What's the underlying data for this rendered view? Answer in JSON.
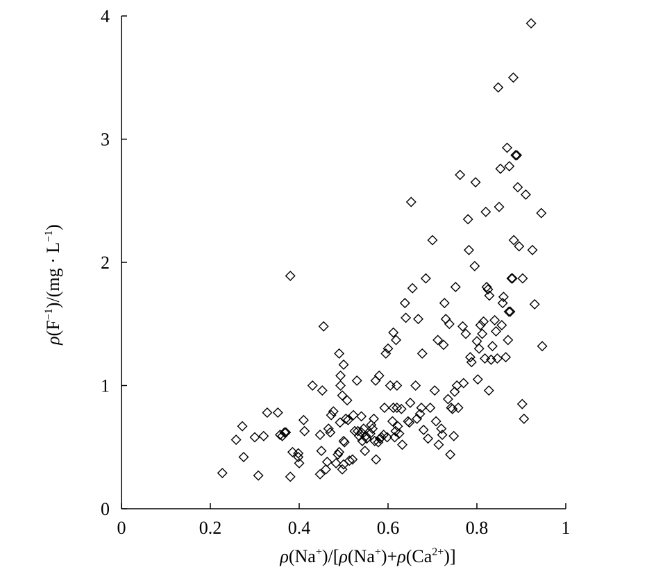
{
  "chart_data": {
    "type": "scatter",
    "marker": "diamond-open",
    "marker_color": "#000000",
    "grid": false,
    "legend": false,
    "xlim": [
      0,
      1
    ],
    "ylim": [
      0,
      4
    ],
    "xticks": [
      "0",
      "0.2",
      "0.4",
      "0.6",
      "0.8",
      "1"
    ],
    "yticks": [
      "0",
      "1",
      "2",
      "3",
      "4"
    ],
    "xlabel": {
      "p1": "ρ",
      "p2": "(Na",
      "p3": "+",
      "p4": ")/[",
      "p5": "ρ",
      "p6": "(Na",
      "p7": "+",
      "p8": ")+",
      "p9": "ρ",
      "p10": "(Ca",
      "p11": "2+",
      "p12": ")]"
    },
    "ylabel": {
      "p1": "ρ",
      "p2": "(F",
      "p3": "−1",
      "p4": ")/(mg · L",
      "p5": "−1",
      "p6": ")"
    },
    "points": [
      [
        0.227,
        0.29
      ],
      [
        0.258,
        0.56
      ],
      [
        0.272,
        0.67
      ],
      [
        0.275,
        0.42
      ],
      [
        0.3,
        0.58
      ],
      [
        0.308,
        0.27
      ],
      [
        0.32,
        0.59
      ],
      [
        0.328,
        0.78
      ],
      [
        0.352,
        0.78
      ],
      [
        0.357,
        0.6
      ],
      [
        0.362,
        0.59
      ],
      [
        0.367,
        0.62
      ],
      [
        0.37,
        0.62
      ],
      [
        0.38,
        0.26
      ],
      [
        0.38,
        1.89
      ],
      [
        0.385,
        0.46
      ],
      [
        0.398,
        0.45
      ],
      [
        0.398,
        0.42
      ],
      [
        0.4,
        0.37
      ],
      [
        0.41,
        0.72
      ],
      [
        0.412,
        0.63
      ],
      [
        0.43,
        1.0
      ],
      [
        0.447,
        0.6
      ],
      [
        0.447,
        0.28
      ],
      [
        0.45,
        0.47
      ],
      [
        0.452,
        0.96
      ],
      [
        0.455,
        1.48
      ],
      [
        0.46,
        0.32
      ],
      [
        0.463,
        0.38
      ],
      [
        0.466,
        0.65
      ],
      [
        0.47,
        0.62
      ],
      [
        0.472,
        0.76
      ],
      [
        0.477,
        0.79
      ],
      [
        0.483,
        0.37
      ],
      [
        0.487,
        0.44
      ],
      [
        0.49,
        1.26
      ],
      [
        0.49,
        0.46
      ],
      [
        0.492,
        0.7
      ],
      [
        0.493,
        1.0
      ],
      [
        0.493,
        1.08
      ],
      [
        0.497,
        0.92
      ],
      [
        0.497,
        0.32
      ],
      [
        0.5,
        0.36
      ],
      [
        0.5,
        1.17
      ],
      [
        0.5,
        0.55
      ],
      [
        0.502,
        0.54
      ],
      [
        0.505,
        0.73
      ],
      [
        0.508,
        0.88
      ],
      [
        0.51,
        0.72
      ],
      [
        0.513,
        0.39
      ],
      [
        0.52,
        0.4
      ],
      [
        0.522,
        0.76
      ],
      [
        0.525,
        0.63
      ],
      [
        0.53,
        1.04
      ],
      [
        0.532,
        0.63
      ],
      [
        0.535,
        0.59
      ],
      [
        0.54,
        0.75
      ],
      [
        0.54,
        0.62
      ],
      [
        0.542,
        0.55
      ],
      [
        0.545,
        0.65
      ],
      [
        0.548,
        0.47
      ],
      [
        0.55,
        0.59
      ],
      [
        0.552,
        0.57
      ],
      [
        0.56,
        0.61
      ],
      [
        0.562,
        0.68
      ],
      [
        0.565,
        0.65
      ],
      [
        0.568,
        0.73
      ],
      [
        0.57,
        0.55
      ],
      [
        0.572,
        1.04
      ],
      [
        0.573,
        0.4
      ],
      [
        0.578,
        0.54
      ],
      [
        0.58,
        1.08
      ],
      [
        0.582,
        0.57
      ],
      [
        0.585,
        0.58
      ],
      [
        0.59,
        0.6
      ],
      [
        0.592,
        0.82
      ],
      [
        0.595,
        1.26
      ],
      [
        0.598,
        0.58
      ],
      [
        0.6,
        1.3
      ],
      [
        0.605,
        1.0
      ],
      [
        0.61,
        0.71
      ],
      [
        0.612,
        1.43
      ],
      [
        0.612,
        0.82
      ],
      [
        0.615,
        0.58
      ],
      [
        0.617,
        0.63
      ],
      [
        0.618,
        1.37
      ],
      [
        0.62,
        1.0
      ],
      [
        0.62,
        0.82
      ],
      [
        0.622,
        0.67
      ],
      [
        0.625,
        0.61
      ],
      [
        0.63,
        0.81
      ],
      [
        0.632,
        0.52
      ],
      [
        0.638,
        1.67
      ],
      [
        0.64,
        1.55
      ],
      [
        0.645,
        0.71
      ],
      [
        0.648,
        0.7
      ],
      [
        0.65,
        0.86
      ],
      [
        0.652,
        2.49
      ],
      [
        0.655,
        1.79
      ],
      [
        0.662,
        1.0
      ],
      [
        0.665,
        0.73
      ],
      [
        0.668,
        1.54
      ],
      [
        0.672,
        0.77
      ],
      [
        0.675,
        0.82
      ],
      [
        0.677,
        1.26
      ],
      [
        0.68,
        0.64
      ],
      [
        0.685,
        1.87
      ],
      [
        0.69,
        0.57
      ],
      [
        0.695,
        0.82
      ],
      [
        0.7,
        2.18
      ],
      [
        0.705,
        0.96
      ],
      [
        0.708,
        0.71
      ],
      [
        0.712,
        1.37
      ],
      [
        0.714,
        0.52
      ],
      [
        0.72,
        0.65
      ],
      [
        0.722,
        0.6
      ],
      [
        0.725,
        1.33
      ],
      [
        0.727,
        1.67
      ],
      [
        0.73,
        1.54
      ],
      [
        0.735,
        0.89
      ],
      [
        0.738,
        1.5
      ],
      [
        0.74,
        0.44
      ],
      [
        0.742,
        0.82
      ],
      [
        0.745,
        0.81
      ],
      [
        0.748,
        0.59
      ],
      [
        0.75,
        0.95
      ],
      [
        0.752,
        1.8
      ],
      [
        0.755,
        1.0
      ],
      [
        0.758,
        0.82
      ],
      [
        0.762,
        2.71
      ],
      [
        0.768,
        1.48
      ],
      [
        0.77,
        1.02
      ],
      [
        0.775,
        1.42
      ],
      [
        0.78,
        2.35
      ],
      [
        0.782,
        2.1
      ],
      [
        0.785,
        1.23
      ],
      [
        0.788,
        1.19
      ],
      [
        0.795,
        1.97
      ],
      [
        0.797,
        2.65
      ],
      [
        0.8,
        1.36
      ],
      [
        0.802,
        1.05
      ],
      [
        0.805,
        1.3
      ],
      [
        0.808,
        1.49
      ],
      [
        0.812,
        1.42
      ],
      [
        0.815,
        1.52
      ],
      [
        0.818,
        1.22
      ],
      [
        0.82,
        2.41
      ],
      [
        0.822,
        1.8
      ],
      [
        0.825,
        1.78
      ],
      [
        0.827,
        0.96
      ],
      [
        0.828,
        1.73
      ],
      [
        0.832,
        1.21
      ],
      [
        0.835,
        1.32
      ],
      [
        0.84,
        1.53
      ],
      [
        0.843,
        1.44
      ],
      [
        0.846,
        1.22
      ],
      [
        0.848,
        3.42
      ],
      [
        0.85,
        2.45
      ],
      [
        0.853,
        2.76
      ],
      [
        0.856,
        1.49
      ],
      [
        0.858,
        1.67
      ],
      [
        0.86,
        1.72
      ],
      [
        0.865,
        1.23
      ],
      [
        0.868,
        2.93
      ],
      [
        0.87,
        1.37
      ],
      [
        0.872,
        1.6
      ],
      [
        0.873,
        2.78
      ],
      [
        0.875,
        1.6
      ],
      [
        0.878,
        1.87
      ],
      [
        0.88,
        1.87
      ],
      [
        0.882,
        3.5
      ],
      [
        0.883,
        2.18
      ],
      [
        0.887,
        2.87
      ],
      [
        0.89,
        2.87
      ],
      [
        0.892,
        2.61
      ],
      [
        0.895,
        2.13
      ],
      [
        0.902,
        0.85
      ],
      [
        0.903,
        1.87
      ],
      [
        0.906,
        0.73
      ],
      [
        0.91,
        2.55
      ],
      [
        0.922,
        3.94
      ],
      [
        0.925,
        2.1
      ],
      [
        0.93,
        1.66
      ],
      [
        0.945,
        2.4
      ],
      [
        0.947,
        1.32
      ]
    ]
  }
}
